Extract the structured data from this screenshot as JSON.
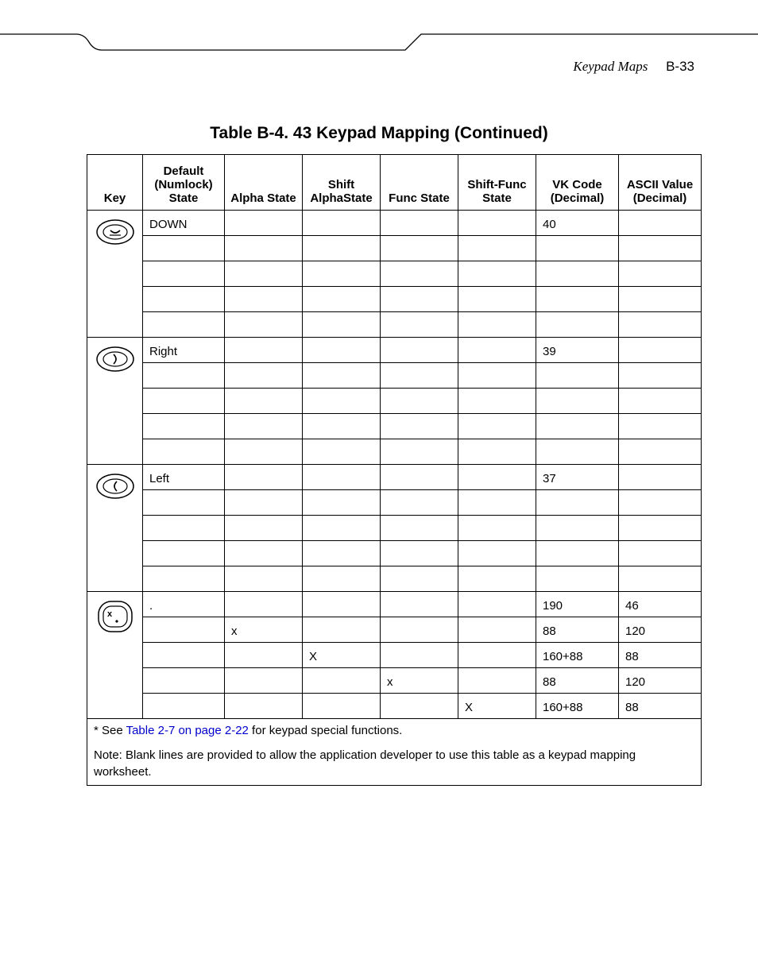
{
  "header": {
    "section": "Keypad Maps",
    "page": "B-33"
  },
  "title": "Table B-4. 43 Keypad Mapping (Continued)",
  "columns": [
    "Key",
    "Default (Numlock) State",
    "Alpha State",
    "Shift AlphaState",
    "Func State",
    "Shift-Func State",
    "VK Code (Decimal)",
    "ASCII Value (Decimal)"
  ],
  "groups": [
    {
      "key_icon": "down",
      "rows": [
        {
          "def": "DOWN",
          "alpha": "",
          "shalpha": "",
          "func": "",
          "sfunc": "",
          "vk": "40",
          "ascii": ""
        },
        {
          "def": "",
          "alpha": "",
          "shalpha": "",
          "func": "",
          "sfunc": "",
          "vk": "",
          "ascii": ""
        },
        {
          "def": "",
          "alpha": "",
          "shalpha": "",
          "func": "",
          "sfunc": "",
          "vk": "",
          "ascii": ""
        },
        {
          "def": "",
          "alpha": "",
          "shalpha": "",
          "func": "",
          "sfunc": "",
          "vk": "",
          "ascii": ""
        },
        {
          "def": "",
          "alpha": "",
          "shalpha": "",
          "func": "",
          "sfunc": "",
          "vk": "",
          "ascii": ""
        }
      ]
    },
    {
      "key_icon": "right",
      "rows": [
        {
          "def": "Right",
          "alpha": "",
          "shalpha": "",
          "func": "",
          "sfunc": "",
          "vk": "39",
          "ascii": ""
        },
        {
          "def": "",
          "alpha": "",
          "shalpha": "",
          "func": "",
          "sfunc": "",
          "vk": "",
          "ascii": ""
        },
        {
          "def": "",
          "alpha": "",
          "shalpha": "",
          "func": "",
          "sfunc": "",
          "vk": "",
          "ascii": ""
        },
        {
          "def": "",
          "alpha": "",
          "shalpha": "",
          "func": "",
          "sfunc": "",
          "vk": "",
          "ascii": ""
        },
        {
          "def": "",
          "alpha": "",
          "shalpha": "",
          "func": "",
          "sfunc": "",
          "vk": "",
          "ascii": ""
        }
      ]
    },
    {
      "key_icon": "left",
      "rows": [
        {
          "def": "Left",
          "alpha": "",
          "shalpha": "",
          "func": "",
          "sfunc": "",
          "vk": "37",
          "ascii": ""
        },
        {
          "def": "",
          "alpha": "",
          "shalpha": "",
          "func": "",
          "sfunc": "",
          "vk": "",
          "ascii": ""
        },
        {
          "def": "",
          "alpha": "",
          "shalpha": "",
          "func": "",
          "sfunc": "",
          "vk": "",
          "ascii": ""
        },
        {
          "def": "",
          "alpha": "",
          "shalpha": "",
          "func": "",
          "sfunc": "",
          "vk": "",
          "ascii": ""
        },
        {
          "def": "",
          "alpha": "",
          "shalpha": "",
          "func": "",
          "sfunc": "",
          "vk": "",
          "ascii": ""
        }
      ]
    },
    {
      "key_icon": "xdot",
      "rows": [
        {
          "def": ".",
          "alpha": "",
          "shalpha": "",
          "func": "",
          "sfunc": "",
          "vk": "190",
          "ascii": "46"
        },
        {
          "def": "",
          "alpha": "x",
          "shalpha": "",
          "func": "",
          "sfunc": "",
          "vk": "88",
          "ascii": "120"
        },
        {
          "def": "",
          "alpha": "",
          "shalpha": "X",
          "func": "",
          "sfunc": "",
          "vk": "160+88",
          "ascii": "88"
        },
        {
          "def": "",
          "alpha": "",
          "shalpha": "",
          "func": "x",
          "sfunc": "",
          "vk": "88",
          "ascii": "120"
        },
        {
          "def": "",
          "alpha": "",
          "shalpha": "",
          "func": "",
          "sfunc": "X",
          "vk": "160+88",
          "ascii": "88"
        }
      ]
    }
  ],
  "footnote": {
    "star_prefix": "* See ",
    "link_text": "Table 2-7 on page 2-22",
    "star_suffix": " for keypad special functions.",
    "note": "Note: Blank lines are provided to allow the application developer to use this table as a keypad mapping worksheet."
  },
  "style": {
    "link_color": "#0000cc",
    "border_color": "#000000",
    "text_color": "#000000",
    "background": "#ffffff"
  }
}
